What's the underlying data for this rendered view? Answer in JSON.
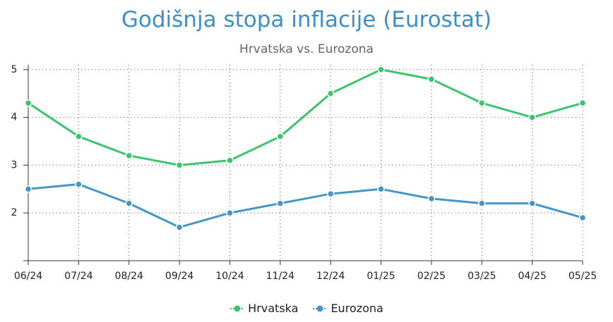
{
  "chart_data": {
    "type": "line",
    "title": "Godišnja stopa inflacije (Eurostat)",
    "subtitle": "Hrvatska vs. Eurozona",
    "categories": [
      "06/24",
      "07/24",
      "08/24",
      "09/24",
      "10/24",
      "11/24",
      "12/24",
      "01/25",
      "02/25",
      "03/25",
      "04/25",
      "05/25"
    ],
    "series": [
      {
        "name": "Hrvatska",
        "color": "#3cc46e",
        "values": [
          4.3,
          3.6,
          3.2,
          3.0,
          3.1,
          3.6,
          4.5,
          5.0,
          4.8,
          4.3,
          4.0,
          4.3
        ]
      },
      {
        "name": "Eurozona",
        "color": "#4596c8",
        "values": [
          2.5,
          2.6,
          2.2,
          1.7,
          2.0,
          2.2,
          2.4,
          2.5,
          2.3,
          2.2,
          2.2,
          1.9
        ]
      }
    ],
    "yticks": [
      2,
      3,
      4,
      5
    ],
    "ylim": [
      1,
      5.1
    ],
    "xlabel": "",
    "ylabel": "",
    "grid": "dotted",
    "legend_position": "bottom"
  }
}
